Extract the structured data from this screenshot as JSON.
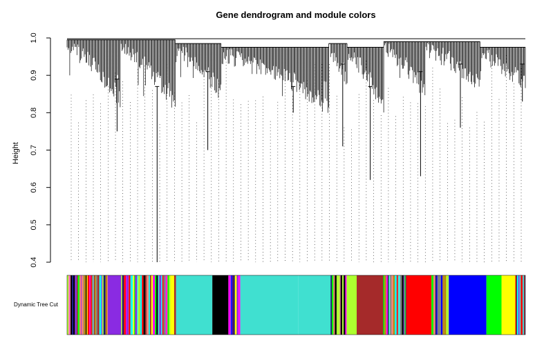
{
  "chart_data": {
    "type": "dendrogram",
    "title": "Gene dendrogram and module colors",
    "ylabel": "Height",
    "ylim": [
      0.4,
      1.0
    ],
    "y_ticks": [
      0.4,
      0.5,
      0.6,
      0.7,
      0.8,
      0.9,
      1.0
    ],
    "color_row_label": "Dynamic Tree Cut",
    "grid": false,
    "root_height": 1.0,
    "branches": [
      {
        "x": 0.0,
        "w": 0.116,
        "top": 0.995,
        "depth": 0.86,
        "min": 0.75
      },
      {
        "x": 0.116,
        "w": 0.12,
        "top": 0.995,
        "depth": 0.84,
        "min": 0.4
      },
      {
        "x": 0.236,
        "w": 0.1,
        "top": 0.985,
        "depth": 0.88,
        "min": 0.7
      },
      {
        "x": 0.336,
        "w": 0.235,
        "top": 0.975,
        "depth": 0.84,
        "min": 0.8
      },
      {
        "x": 0.571,
        "w": 0.04,
        "top": 0.985,
        "depth": 0.9,
        "min": 0.71
      },
      {
        "x": 0.611,
        "w": 0.08,
        "top": 0.975,
        "depth": 0.84,
        "min": 0.62
      },
      {
        "x": 0.691,
        "w": 0.09,
        "top": 0.99,
        "depth": 0.88,
        "min": 0.63
      },
      {
        "x": 0.781,
        "w": 0.12,
        "top": 0.99,
        "depth": 0.9,
        "min": 0.76
      },
      {
        "x": 0.901,
        "w": 0.099,
        "top": 0.975,
        "depth": 0.9,
        "min": 0.83
      }
    ],
    "module_blocks": [
      {
        "start": 0.0,
        "end": 0.089,
        "color": "mixed"
      },
      {
        "start": 0.089,
        "end": 0.118,
        "color": "#8a2be2"
      },
      {
        "start": 0.118,
        "end": 0.16,
        "color": "mixed"
      },
      {
        "start": 0.16,
        "end": 0.238,
        "color": "mixed"
      },
      {
        "start": 0.238,
        "end": 0.317,
        "color": "#40e0d0"
      },
      {
        "start": 0.317,
        "end": 0.352,
        "color": "#000000"
      },
      {
        "start": 0.352,
        "end": 0.378,
        "color": "mixed"
      },
      {
        "start": 0.378,
        "end": 0.505,
        "color": "#40e0d0"
      },
      {
        "start": 0.505,
        "end": 0.575,
        "color": "#40e0d0"
      },
      {
        "start": 0.575,
        "end": 0.61,
        "color": "mixed"
      },
      {
        "start": 0.61,
        "end": 0.632,
        "color": "#adff2f"
      },
      {
        "start": 0.632,
        "end": 0.69,
        "color": "#a52a2a"
      },
      {
        "start": 0.69,
        "end": 0.74,
        "color": "mixed"
      },
      {
        "start": 0.74,
        "end": 0.795,
        "color": "#ff0000"
      },
      {
        "start": 0.795,
        "end": 0.833,
        "color": "mixed"
      },
      {
        "start": 0.833,
        "end": 0.915,
        "color": "#0000ff"
      },
      {
        "start": 0.915,
        "end": 0.948,
        "color": "#00ff00"
      },
      {
        "start": 0.948,
        "end": 0.978,
        "color": "#ffff00"
      },
      {
        "start": 0.978,
        "end": 1.0,
        "color": "mixed"
      }
    ],
    "module_palette": [
      "#40e0d0",
      "#0000ff",
      "#a52a2a",
      "#ffff00",
      "#00ff00",
      "#ff0000",
      "#000000",
      "#ff69b4",
      "#8a2be2",
      "#adff2f",
      "#fa8072",
      "#00ffff",
      "#ff00ff",
      "#b8860b",
      "#808080",
      "#191970"
    ]
  }
}
